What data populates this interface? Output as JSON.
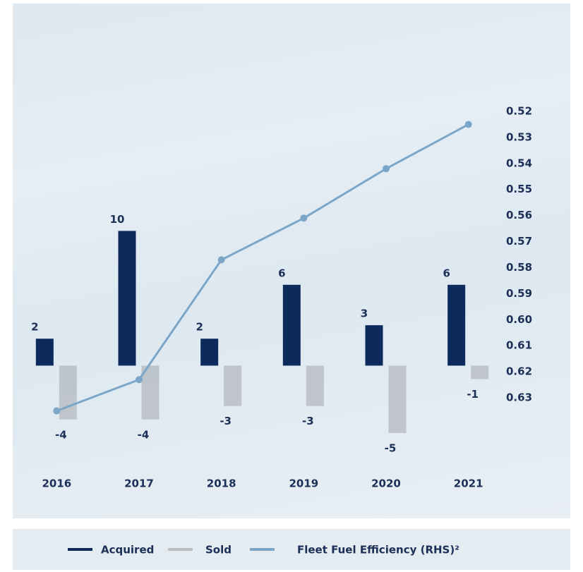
{
  "chart_data": {
    "type": "bar-line",
    "categories": [
      "2016",
      "2017",
      "2018",
      "2019",
      "2020",
      "2021"
    ],
    "series": [
      {
        "name": "Acquired",
        "color": "#0d2a5c",
        "type": "bar",
        "values": [
          2,
          10,
          2,
          6,
          3,
          6
        ]
      },
      {
        "name": "Sold",
        "color": "#b9bec3",
        "type": "bar",
        "values": [
          -4,
          -4,
          -3,
          -3,
          -5,
          -1
        ]
      },
      {
        "name": "Fleet Fuel Efficiency (RHS)²",
        "color": "#7ba6c8",
        "type": "line",
        "axis": "y2",
        "values": [
          0.635,
          0.623,
          0.577,
          0.561,
          0.542,
          0.525
        ]
      }
    ],
    "ylim": [
      -6,
      14
    ],
    "y2lim": [
      0.64,
      0.51
    ],
    "y2ticks": [
      0.52,
      0.53,
      0.54,
      0.55,
      0.56,
      0.57,
      0.58,
      0.59,
      {
        "value": 0.6,
        "label": "0.60"
      },
      0.61,
      0.62,
      0.63
    ],
    "legend": "bottom"
  }
}
